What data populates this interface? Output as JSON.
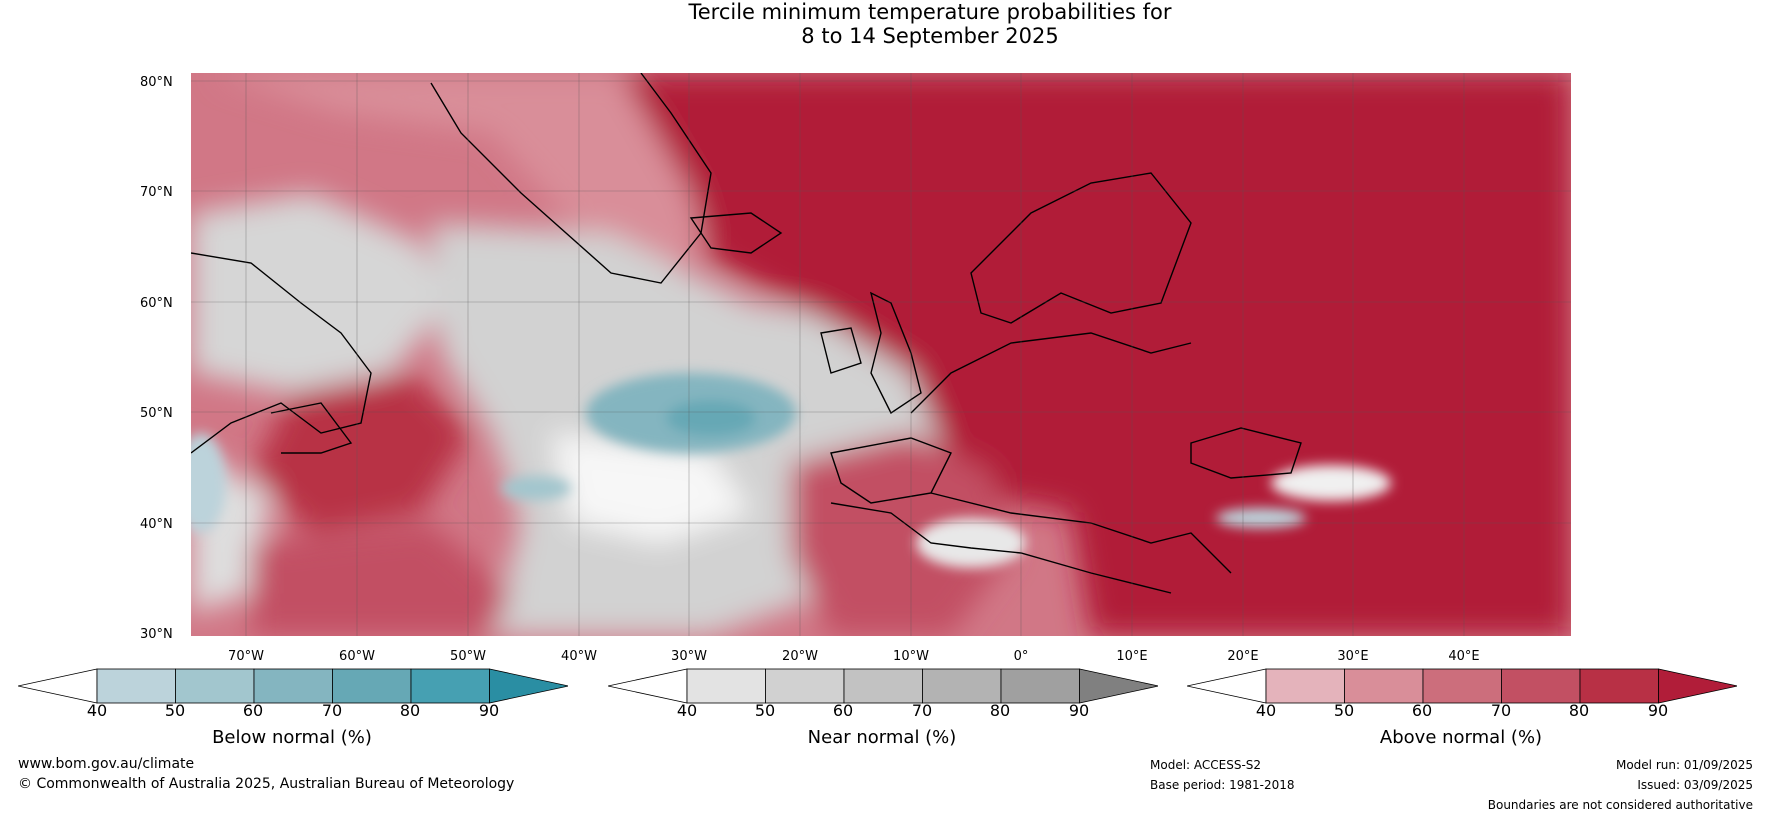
{
  "title": {
    "line1": "Tercile minimum temperature probabilities for",
    "line2": "8 to 14 September 2025"
  },
  "latitude_labels": [
    "80°N",
    "70°N",
    "60°N",
    "50°N",
    "40°N",
    "30°N"
  ],
  "longitude_labels": [
    "70°W",
    "60°W",
    "50°W",
    "40°W",
    "30°W",
    "20°W",
    "10°W",
    "0°",
    "10°E",
    "20°E",
    "30°E",
    "40°E"
  ],
  "colorbars": [
    {
      "label": "Below normal (%)",
      "ticks": [
        "40",
        "50",
        "60",
        "70",
        "80",
        "90"
      ],
      "colors": [
        "#ffffff",
        "#bcd3db",
        "#a2c6ce",
        "#84b5c0",
        "#66a8b5",
        "#46a0b2",
        "#2a8ea3"
      ]
    },
    {
      "label": "Near normal (%)",
      "ticks": [
        "40",
        "50",
        "60",
        "70",
        "80",
        "90"
      ],
      "colors": [
        "#ffffff",
        "#e3e3e3",
        "#d1d1d1",
        "#c2c2c2",
        "#b3b3b3",
        "#a0a0a0",
        "#808080"
      ]
    },
    {
      "label": "Above normal (%)",
      "ticks": [
        "40",
        "50",
        "60",
        "70",
        "80",
        "90"
      ],
      "colors": [
        "#ffffff",
        "#e4b3bb",
        "#d98e99",
        "#cc6e7c",
        "#c25063",
        "#b83045",
        "#b11d39"
      ]
    }
  ],
  "footer": {
    "website": "www.bom.gov.au/climate",
    "copyright": "© Commonwealth of Australia 2025, Australian Bureau of Meteorology",
    "model": "Model: ACCESS-S2",
    "base_period": "Base period: 1981-2018",
    "model_run": "Model run: 01/09/2025",
    "issued": "Issued: 03/09/2025",
    "disclaimer": "Boundaries are not considered authoritative"
  }
}
